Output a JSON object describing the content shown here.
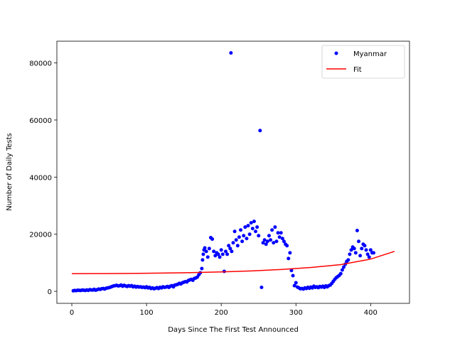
{
  "chart_data": {
    "type": "scatter",
    "title": "",
    "xlabel": "Days Since The First Test Announced",
    "ylabel": "Number of Daily Tests",
    "xlim": [
      -20,
      452
    ],
    "ylim": [
      -4200,
      87600
    ],
    "xticks": [
      0,
      100,
      200,
      300,
      400
    ],
    "yticks": [
      0,
      20000,
      40000,
      60000,
      80000
    ],
    "grid": false,
    "legend_position": "top-right",
    "colors": {
      "scatter": "#0000ff",
      "fit": "#ff0000",
      "axis": "#000000"
    },
    "series": [
      {
        "name": "Myanmar",
        "kind": "scatter",
        "points": [
          [
            2,
            200
          ],
          [
            4,
            300
          ],
          [
            6,
            250
          ],
          [
            8,
            400
          ],
          [
            10,
            350
          ],
          [
            12,
            300
          ],
          [
            14,
            450
          ],
          [
            16,
            400
          ],
          [
            18,
            300
          ],
          [
            20,
            500
          ],
          [
            22,
            350
          ],
          [
            24,
            600
          ],
          [
            26,
            500
          ],
          [
            28,
            450
          ],
          [
            30,
            700
          ],
          [
            32,
            400
          ],
          [
            34,
            600
          ],
          [
            36,
            800
          ],
          [
            38,
            700
          ],
          [
            40,
            900
          ],
          [
            42,
            1000
          ],
          [
            44,
            800
          ],
          [
            46,
            1100
          ],
          [
            48,
            1200
          ],
          [
            50,
            1300
          ],
          [
            52,
            1500
          ],
          [
            54,
            1700
          ],
          [
            56,
            1900
          ],
          [
            58,
            2000
          ],
          [
            60,
            2100
          ],
          [
            62,
            1900
          ],
          [
            64,
            2000
          ],
          [
            66,
            2200
          ],
          [
            68,
            1800
          ],
          [
            70,
            2100
          ],
          [
            72,
            1900
          ],
          [
            74,
            1700
          ],
          [
            76,
            2000
          ],
          [
            78,
            1800
          ],
          [
            80,
            2000
          ],
          [
            82,
            1600
          ],
          [
            84,
            1800
          ],
          [
            86,
            1500
          ],
          [
            88,
            1700
          ],
          [
            90,
            1500
          ],
          [
            92,
            1600
          ],
          [
            94,
            1400
          ],
          [
            96,
            1500
          ],
          [
            98,
            1300
          ],
          [
            100,
            1600
          ],
          [
            102,
            1200
          ],
          [
            104,
            1400
          ],
          [
            106,
            1000
          ],
          [
            108,
            1200
          ],
          [
            110,
            900
          ],
          [
            112,
            1100
          ],
          [
            114,
            1300
          ],
          [
            116,
            1000
          ],
          [
            118,
            1400
          ],
          [
            120,
            1200
          ],
          [
            122,
            1600
          ],
          [
            124,
            1400
          ],
          [
            126,
            1500
          ],
          [
            128,
            1700
          ],
          [
            130,
            1400
          ],
          [
            132,
            1800
          ],
          [
            134,
            2000
          ],
          [
            136,
            1600
          ],
          [
            138,
            2200
          ],
          [
            140,
            2300
          ],
          [
            142,
            2500
          ],
          [
            144,
            2800
          ],
          [
            146,
            2600
          ],
          [
            148,
            3000
          ],
          [
            150,
            3200
          ],
          [
            152,
            3400
          ],
          [
            154,
            3300
          ],
          [
            156,
            3800
          ],
          [
            158,
            4000
          ],
          [
            160,
            4200
          ],
          [
            162,
            3900
          ],
          [
            164,
            4500
          ],
          [
            166,
            4700
          ],
          [
            168,
            5000
          ],
          [
            170,
            5800
          ],
          [
            172,
            6500
          ],
          [
            174,
            8000
          ],
          [
            175,
            11000
          ],
          [
            176,
            13000
          ],
          [
            177,
            14500
          ],
          [
            178,
            15200
          ],
          [
            180,
            14000
          ],
          [
            182,
            12000
          ],
          [
            184,
            15000
          ],
          [
            186,
            18800
          ],
          [
            188,
            18300
          ],
          [
            190,
            14000
          ],
          [
            192,
            12500
          ],
          [
            194,
            13500
          ],
          [
            196,
            13000
          ],
          [
            198,
            12000
          ],
          [
            200,
            14500
          ],
          [
            202,
            13000
          ],
          [
            204,
            7000
          ],
          [
            206,
            14000
          ],
          [
            208,
            13000
          ],
          [
            210,
            16000
          ],
          [
            212,
            15000
          ],
          [
            213,
            83500
          ],
          [
            214,
            14000
          ],
          [
            216,
            17000
          ],
          [
            218,
            21000
          ],
          [
            220,
            18000
          ],
          [
            222,
            16000
          ],
          [
            224,
            19000
          ],
          [
            226,
            21500
          ],
          [
            228,
            17500
          ],
          [
            230,
            19500
          ],
          [
            232,
            22500
          ],
          [
            234,
            18500
          ],
          [
            236,
            23000
          ],
          [
            238,
            20000
          ],
          [
            240,
            24000
          ],
          [
            242,
            22000
          ],
          [
            244,
            24500
          ],
          [
            246,
            21000
          ],
          [
            248,
            22500
          ],
          [
            250,
            19500
          ],
          [
            252,
            56300
          ],
          [
            254,
            1400
          ],
          [
            256,
            17000
          ],
          [
            258,
            18000
          ],
          [
            260,
            16500
          ],
          [
            262,
            17500
          ],
          [
            264,
            19500
          ],
          [
            266,
            18000
          ],
          [
            268,
            21500
          ],
          [
            270,
            17000
          ],
          [
            272,
            22500
          ],
          [
            274,
            17500
          ],
          [
            276,
            20500
          ],
          [
            278,
            19000
          ],
          [
            280,
            20500
          ],
          [
            282,
            18500
          ],
          [
            284,
            17500
          ],
          [
            286,
            16500
          ],
          [
            288,
            16000
          ],
          [
            290,
            11500
          ],
          [
            292,
            13500
          ],
          [
            294,
            7300
          ],
          [
            296,
            5500
          ],
          [
            298,
            2000
          ],
          [
            300,
            3000
          ],
          [
            302,
            1500
          ],
          [
            304,
            1200
          ],
          [
            306,
            900
          ],
          [
            308,
            1000
          ],
          [
            310,
            800
          ],
          [
            312,
            1200
          ],
          [
            314,
            1000
          ],
          [
            316,
            1400
          ],
          [
            318,
            1100
          ],
          [
            320,
            1500
          ],
          [
            322,
            1200
          ],
          [
            324,
            1800
          ],
          [
            326,
            1400
          ],
          [
            328,
            1600
          ],
          [
            330,
            1300
          ],
          [
            332,
            1700
          ],
          [
            334,
            1500
          ],
          [
            336,
            1800
          ],
          [
            338,
            1400
          ],
          [
            340,
            1900
          ],
          [
            342,
            1600
          ],
          [
            344,
            2000
          ],
          [
            346,
            2200
          ],
          [
            348,
            2800
          ],
          [
            350,
            3500
          ],
          [
            352,
            4200
          ],
          [
            354,
            4800
          ],
          [
            356,
            5200
          ],
          [
            358,
            5600
          ],
          [
            360,
            6200
          ],
          [
            362,
            7500
          ],
          [
            364,
            8500
          ],
          [
            366,
            9500
          ],
          [
            368,
            10500
          ],
          [
            370,
            11000
          ],
          [
            372,
            13000
          ],
          [
            374,
            14500
          ],
          [
            376,
            15500
          ],
          [
            378,
            15000
          ],
          [
            380,
            13500
          ],
          [
            382,
            21300
          ],
          [
            384,
            17500
          ],
          [
            386,
            12500
          ],
          [
            388,
            15000
          ],
          [
            390,
            16500
          ],
          [
            392,
            16000
          ],
          [
            394,
            14500
          ],
          [
            396,
            13000
          ],
          [
            398,
            12000
          ],
          [
            400,
            14500
          ],
          [
            402,
            13500
          ],
          [
            404,
            13500
          ]
        ]
      },
      {
        "name": "Fit",
        "kind": "line",
        "points": [
          [
            0,
            6200
          ],
          [
            40,
            6220
          ],
          [
            80,
            6290
          ],
          [
            120,
            6400
          ],
          [
            160,
            6560
          ],
          [
            200,
            6800
          ],
          [
            240,
            7150
          ],
          [
            280,
            7650
          ],
          [
            320,
            8350
          ],
          [
            360,
            9350
          ],
          [
            400,
            11300
          ],
          [
            432,
            14000
          ]
        ]
      }
    ]
  }
}
